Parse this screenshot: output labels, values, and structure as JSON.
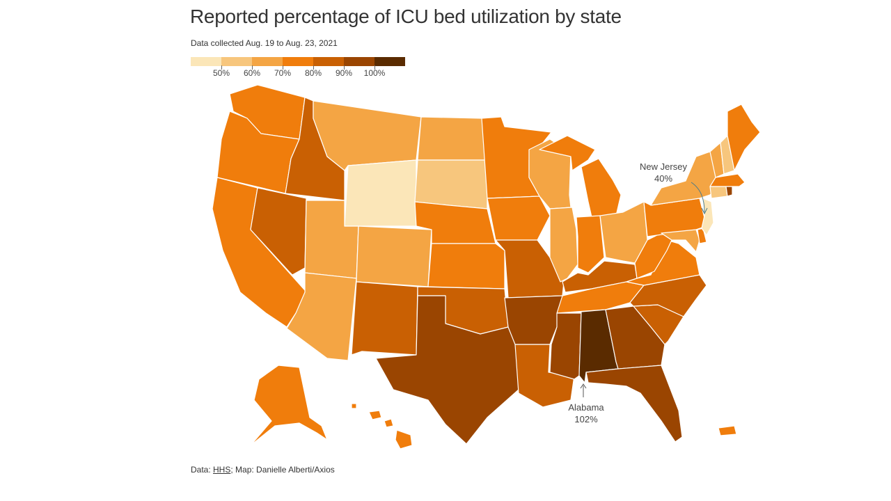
{
  "title": "Reported percentage of ICU bed utilization by state",
  "subtitle": "Data collected Aug. 19 to Aug. 23, 2021",
  "legend": {
    "colors": [
      "#fbe6b8",
      "#f7c67d",
      "#f4a544",
      "#f07d0c",
      "#c96003",
      "#9a4501",
      "#5a2b00"
    ],
    "labels": [
      "50%",
      "60%",
      "70%",
      "80%",
      "90%",
      "100%"
    ]
  },
  "colors": {
    "bin1": "#fbe6b8",
    "bin2": "#f7c67d",
    "bin3": "#f4a544",
    "bin4": "#f07d0c",
    "bin5": "#c96003",
    "bin6": "#9a4501",
    "bin7": "#5a2b00"
  },
  "annotations": {
    "new_jersey": {
      "name": "New Jersey",
      "value": "40%"
    },
    "alabama": {
      "name": "Alabama",
      "value": "102%"
    }
  },
  "source": {
    "prefix": "Data: ",
    "link": "HHS",
    "suffix": "; Map: Danielle Alberti/Axios"
  },
  "states": {
    "WA": 4,
    "OR": 4,
    "CA": 4,
    "ID": 5,
    "NV": 5,
    "MT": 3,
    "WY": 1,
    "UT": 3,
    "AZ": 3,
    "CO": 3,
    "NM": 5,
    "ND": 3,
    "SD": 2,
    "NE": 4,
    "KS": 4,
    "OK": 5,
    "TX": 6,
    "MN": 4,
    "IA": 4,
    "MO": 5,
    "AR": 6,
    "LA": 5,
    "WI": 3,
    "IL": 3,
    "MI": 4,
    "IN": 4,
    "OH": 3,
    "KY": 5,
    "TN": 4,
    "MS": 6,
    "AL": 7,
    "GA": 6,
    "FL": 6,
    "SC": 5,
    "NC": 5,
    "VA": 4,
    "WV": 4,
    "PA": 4,
    "NY": 3,
    "ME": 4,
    "VT": 3,
    "NH": 2,
    "MA": 4,
    "CT": 2,
    "RI": 6,
    "NJ": 1,
    "DE": 4,
    "MD": 3,
    "AK": 4,
    "HI": 4,
    "PR": 4
  }
}
